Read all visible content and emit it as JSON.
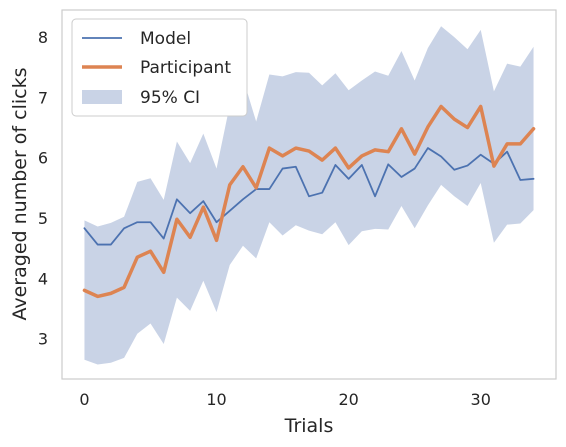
{
  "chart_data": {
    "type": "line",
    "xlabel": "Trials",
    "ylabel": "Averaged number of clicks",
    "xlim": [
      -1.7,
      35.7
    ],
    "ylim": [
      2.33,
      8.45
    ],
    "xticks": [
      0,
      10,
      20,
      30
    ],
    "yticks": [
      3,
      4,
      5,
      6,
      7,
      8
    ],
    "grid": false,
    "legend_placement": "top-left",
    "x": [
      0,
      1,
      2,
      3,
      4,
      5,
      6,
      7,
      8,
      9,
      10,
      11,
      12,
      13,
      14,
      15,
      16,
      17,
      18,
      19,
      20,
      21,
      22,
      23,
      24,
      25,
      26,
      27,
      28,
      29,
      30,
      31,
      32,
      33,
      34
    ],
    "series": [
      {
        "name": "Model",
        "color": "#4c72b0",
        "values": [
          4.83,
          4.56,
          4.56,
          4.83,
          4.93,
          4.93,
          4.66,
          5.31,
          5.08,
          5.28,
          4.93,
          5.12,
          5.31,
          5.48,
          5.48,
          5.82,
          5.85,
          5.36,
          5.42,
          5.88,
          5.65,
          5.88,
          5.36,
          5.89,
          5.68,
          5.82,
          6.16,
          6.02,
          5.8,
          5.87,
          6.05,
          5.9,
          6.1,
          5.63,
          5.65
        ]
      },
      {
        "name": "Participant",
        "color": "#dd8452",
        "values": [
          3.8,
          3.7,
          3.75,
          3.85,
          4.35,
          4.45,
          4.1,
          4.98,
          4.68,
          5.18,
          4.63,
          5.55,
          5.85,
          5.5,
          6.16,
          6.03,
          6.16,
          6.11,
          5.96,
          6.16,
          5.83,
          6.03,
          6.13,
          6.1,
          6.48,
          6.06,
          6.51,
          6.85,
          6.64,
          6.5,
          6.85,
          5.86,
          6.23,
          6.23,
          6.48
        ]
      }
    ],
    "ci": {
      "name": "95% CI",
      "color": "#c9d3e6",
      "upper": [
        4.96,
        4.86,
        4.92,
        5.02,
        5.6,
        5.66,
        5.3,
        6.27,
        5.91,
        6.4,
        5.82,
        6.87,
        7.32,
        6.6,
        7.38,
        7.35,
        7.42,
        7.41,
        7.2,
        7.4,
        7.12,
        7.28,
        7.43,
        7.36,
        7.77,
        7.28,
        7.82,
        8.18,
        8.0,
        7.8,
        8.12,
        7.1,
        7.56,
        7.51,
        7.84
      ],
      "lower": [
        2.65,
        2.57,
        2.6,
        2.68,
        3.08,
        3.25,
        2.91,
        3.68,
        3.46,
        3.96,
        3.44,
        4.22,
        4.54,
        4.33,
        4.93,
        4.71,
        4.88,
        4.79,
        4.73,
        4.93,
        4.55,
        4.78,
        4.82,
        4.81,
        5.2,
        4.83,
        5.21,
        5.55,
        5.36,
        5.2,
        5.58,
        4.59,
        4.89,
        4.91,
        5.13
      ]
    }
  }
}
